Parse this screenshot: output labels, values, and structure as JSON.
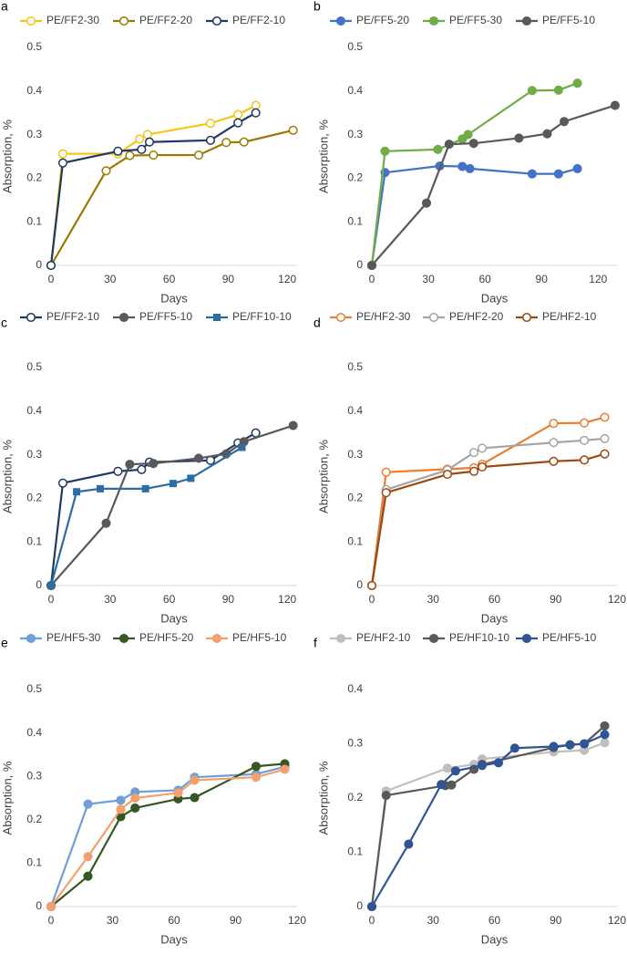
{
  "chart_data": [
    {
      "type": "line",
      "panel_label": "a",
      "x_label": "Days",
      "y_label": "Absorption, %",
      "legend": "top",
      "xlim": [
        0,
        125
      ],
      "xticks": [
        0,
        30,
        60,
        90,
        120
      ],
      "ylim": [
        0,
        0.5
      ],
      "yticks": [
        0,
        0.1,
        0.2,
        0.3,
        0.4,
        0.5
      ],
      "series": [
        {
          "name": "PE/FF2-30",
          "color": "#f5c518",
          "marker": "open-circle",
          "x": [
            0,
            6,
            34,
            45,
            49,
            81,
            95,
            104
          ],
          "values": [
            0,
            0.256,
            0.256,
            0.29,
            0.3,
            0.326,
            0.346,
            0.367
          ]
        },
        {
          "name": "PE/FF2-20",
          "color": "#9c7a00",
          "marker": "open-circle",
          "x": [
            0,
            28,
            40,
            52,
            75,
            89,
            98,
            123
          ],
          "values": [
            0,
            0.217,
            0.252,
            0.253,
            0.253,
            0.282,
            0.283,
            0.31
          ]
        },
        {
          "name": "PE/FF2-10",
          "color": "#203864",
          "marker": "open-circle",
          "x": [
            0,
            6,
            34,
            46,
            50,
            81,
            95,
            104
          ],
          "values": [
            0,
            0.235,
            0.262,
            0.266,
            0.283,
            0.287,
            0.327,
            0.35
          ]
        }
      ]
    },
    {
      "type": "line",
      "panel_label": "b",
      "x_label": "Days",
      "y_label": "Absorption, %",
      "legend": "top",
      "xlim": [
        0,
        130
      ],
      "xticks": [
        0,
        30,
        60,
        90,
        120
      ],
      "ylim": [
        0,
        0.5
      ],
      "yticks": [
        0,
        0.1,
        0.2,
        0.3,
        0.4,
        0.5
      ],
      "series": [
        {
          "name": "PE/FF5-20",
          "color": "#4472c4",
          "marker": "circle",
          "x": [
            0,
            7,
            36,
            48,
            52,
            85,
            99,
            109
          ],
          "values": [
            0,
            0.213,
            0.228,
            0.227,
            0.222,
            0.21,
            0.21,
            0.222
          ]
        },
        {
          "name": "PE/FF5-30",
          "color": "#70ad47",
          "marker": "circle",
          "x": [
            0,
            7,
            35,
            48,
            51,
            85,
            99,
            109
          ],
          "values": [
            0,
            0.262,
            0.266,
            0.29,
            0.3,
            0.401,
            0.402,
            0.418
          ]
        },
        {
          "name": "PE/FF5-10",
          "color": "#595959",
          "marker": "circle",
          "x": [
            0,
            29,
            41,
            54,
            78,
            93,
            102,
            129
          ],
          "values": [
            0,
            0.143,
            0.278,
            0.28,
            0.292,
            0.302,
            0.33,
            0.367
          ]
        }
      ]
    },
    {
      "type": "line",
      "panel_label": "c",
      "x_label": "Days",
      "y_label": "Absorption, %",
      "legend": "top",
      "xlim": [
        0,
        125
      ],
      "xticks": [
        0,
        30,
        60,
        90,
        120
      ],
      "ylim": [
        0,
        0.5
      ],
      "yticks": [
        0,
        0.1,
        0.2,
        0.3,
        0.4,
        0.5
      ],
      "series": [
        {
          "name": "PE/FF2-10",
          "color": "#203864",
          "marker": "open-circle",
          "x": [
            0,
            6,
            34,
            46,
            50,
            81,
            95,
            104
          ],
          "values": [
            0,
            0.235,
            0.262,
            0.266,
            0.283,
            0.287,
            0.327,
            0.35
          ]
        },
        {
          "name": "PE/FF5-10",
          "color": "#595959",
          "marker": "circle",
          "x": [
            0,
            28,
            40,
            52,
            75,
            89,
            98,
            123
          ],
          "values": [
            0,
            0.143,
            0.278,
            0.28,
            0.292,
            0.302,
            0.33,
            0.367
          ]
        },
        {
          "name": "PE/FF10-10",
          "color": "#2e6ca4",
          "marker": "square",
          "x": [
            0,
            13,
            25,
            48,
            62,
            71,
            97
          ],
          "values": [
            0,
            0.215,
            0.222,
            0.222,
            0.234,
            0.246,
            0.317
          ]
        }
      ]
    },
    {
      "type": "line",
      "panel_label": "d",
      "x_label": "Days",
      "y_label": "Absorption, %",
      "legend": "top",
      "xlim": [
        0,
        120
      ],
      "xticks": [
        0,
        30,
        60,
        90,
        120
      ],
      "ylim": [
        0,
        0.5
      ],
      "yticks": [
        0,
        0.1,
        0.2,
        0.3,
        0.4,
        0.5
      ],
      "series": [
        {
          "name": "PE/HF2-30",
          "color": "#ed7d31",
          "marker": "open-circle",
          "x": [
            0,
            7,
            37,
            50,
            54,
            89,
            104,
            114
          ],
          "values": [
            0,
            0.26,
            0.267,
            0.27,
            0.278,
            0.372,
            0.373,
            0.386
          ]
        },
        {
          "name": "PE/HF2-20",
          "color": "#a5a5a5",
          "marker": "open-circle",
          "x": [
            0,
            7,
            37,
            50,
            54,
            89,
            104,
            114
          ],
          "values": [
            0,
            0.22,
            0.265,
            0.305,
            0.315,
            0.328,
            0.333,
            0.337
          ]
        },
        {
          "name": "PE/HF2-10",
          "color": "#9e480e",
          "marker": "open-circle",
          "x": [
            0,
            7,
            37,
            50,
            54,
            89,
            104,
            114
          ],
          "values": [
            0,
            0.213,
            0.255,
            0.262,
            0.272,
            0.285,
            0.288,
            0.302
          ]
        }
      ]
    },
    {
      "type": "line",
      "panel_label": "e",
      "x_label": "Days",
      "y_label": "Absorption, %",
      "legend": "top",
      "xlim": [
        0,
        120
      ],
      "xticks": [
        0,
        30,
        60,
        90,
        120
      ],
      "ylim": [
        0,
        0.5
      ],
      "yticks": [
        0,
        0.1,
        0.2,
        0.3,
        0.4,
        0.5
      ],
      "series": [
        {
          "name": "PE/HF5-30",
          "color": "#6f9fd8",
          "marker": "circle",
          "x": [
            0,
            18,
            34,
            41,
            62,
            70,
            100,
            114
          ],
          "values": [
            0,
            0.236,
            0.245,
            0.264,
            0.268,
            0.298,
            0.305,
            0.322
          ]
        },
        {
          "name": "PE/HF5-20",
          "color": "#375623",
          "marker": "circle",
          "x": [
            0,
            18,
            34,
            41,
            62,
            70,
            100,
            114
          ],
          "values": [
            0,
            0.07,
            0.207,
            0.227,
            0.248,
            0.251,
            0.323,
            0.329
          ]
        },
        {
          "name": "PE/HF5-10",
          "color": "#f4a06c",
          "marker": "circle",
          "x": [
            0,
            18,
            34,
            41,
            62,
            70,
            100,
            114
          ],
          "values": [
            0,
            0.115,
            0.224,
            0.25,
            0.262,
            0.291,
            0.298,
            0.316
          ]
        }
      ]
    },
    {
      "type": "line",
      "panel_label": "f",
      "x_label": "Days",
      "y_label": "Absorption, %",
      "legend": "top",
      "xlim": [
        0,
        120
      ],
      "xticks": [
        0,
        30,
        60,
        90,
        120
      ],
      "ylim": [
        0,
        0.4
      ],
      "yticks": [
        0,
        0.1,
        0.2,
        0.3,
        0.4
      ],
      "series": [
        {
          "name": "PE/HF2-10",
          "color": "#bfbfbf",
          "marker": "circle",
          "x": [
            0,
            7,
            37,
            50,
            54,
            89,
            104,
            114
          ],
          "values": [
            0,
            0.213,
            0.255,
            0.262,
            0.272,
            0.285,
            0.288,
            0.302
          ]
        },
        {
          "name": "PE/HF10-10",
          "color": "#595959",
          "marker": "circle",
          "x": [
            0,
            7,
            36,
            39,
            50,
            54,
            89,
            97,
            104,
            114
          ],
          "values": [
            0,
            0.205,
            0.223,
            0.224,
            0.253,
            0.262,
            0.293,
            0.298,
            0.3,
            0.333
          ]
        },
        {
          "name": "PE/HF5-10",
          "color": "#2f5597",
          "marker": "circle",
          "x": [
            0,
            18,
            34,
            41,
            54,
            62,
            70,
            89,
            97,
            104,
            114
          ],
          "values": [
            0,
            0.115,
            0.225,
            0.25,
            0.26,
            0.265,
            0.292,
            0.295,
            0.298,
            0.3,
            0.317
          ]
        }
      ]
    }
  ]
}
